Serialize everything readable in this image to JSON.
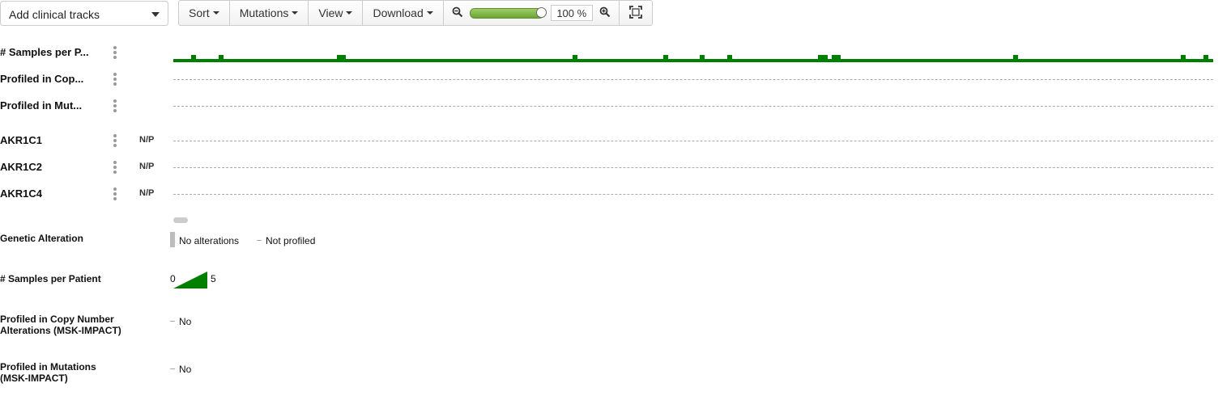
{
  "toolbar": {
    "add_tracks_label": "Add clinical tracks",
    "sort_label": "Sort",
    "mutations_label": "Mutations",
    "view_label": "View",
    "download_label": "Download",
    "zoom_value": "100 %",
    "zoom_level": 1.0,
    "icons": [
      "zoom-out-icon",
      "zoom-in-icon",
      "fit-to-screen-icon"
    ]
  },
  "tracks": [
    {
      "label": "# Samples per P...",
      "np": ""
    },
    {
      "label": "Profiled in Cop...",
      "np": ""
    },
    {
      "label": "Profiled in Mut...",
      "np": ""
    },
    {
      "label": "AKR1C1",
      "np": "N/P"
    },
    {
      "label": "AKR1C2",
      "np": "N/P"
    },
    {
      "label": "AKR1C4",
      "np": "N/P"
    }
  ],
  "samples_per_patient": [
    1,
    1,
    1,
    1,
    2,
    1,
    1,
    1,
    1,
    1,
    2,
    1,
    1,
    1,
    1,
    1,
    1,
    1,
    1,
    1,
    1,
    1,
    1,
    1,
    1,
    1,
    1,
    1,
    1,
    1,
    1,
    1,
    1,
    1,
    1,
    1,
    2,
    2,
    1,
    1,
    1,
    1,
    1,
    1,
    1,
    1,
    1,
    1,
    1,
    1,
    1,
    1,
    1,
    1,
    1,
    1,
    1,
    1,
    1,
    1,
    1,
    1,
    1,
    1,
    1,
    1,
    1,
    1,
    1,
    1,
    1,
    1,
    1,
    1,
    1,
    1,
    1,
    1,
    1,
    1,
    1,
    1,
    1,
    1,
    1,
    1,
    1,
    1,
    2,
    1,
    1,
    1,
    1,
    1,
    1,
    1,
    1,
    1,
    1,
    1,
    1,
    1,
    1,
    1,
    1,
    1,
    1,
    1,
    2,
    1,
    1,
    1,
    1,
    1,
    1,
    1,
    2,
    1,
    1,
    1,
    1,
    1,
    2,
    1,
    1,
    1,
    1,
    1,
    1,
    1,
    1,
    1,
    1,
    1,
    1,
    1,
    1,
    1,
    1,
    1,
    1,
    1,
    2,
    2,
    1,
    2,
    2,
    1,
    1,
    1,
    1,
    1,
    1,
    1,
    1,
    1,
    1,
    1,
    1,
    1,
    1,
    1,
    1,
    1,
    1,
    1,
    1,
    1,
    1,
    1,
    1,
    1,
    1,
    1,
    1,
    1,
    1,
    1,
    1,
    1,
    1,
    1,
    1,
    1,
    1,
    2,
    1,
    1,
    1,
    1,
    1,
    1,
    1,
    1,
    1,
    1,
    1,
    1,
    1,
    1,
    1,
    1,
    1,
    1,
    1,
    1,
    1,
    1,
    1,
    1,
    1,
    1,
    1,
    1,
    1,
    1,
    1,
    1,
    1,
    1,
    1,
    1,
    2,
    1,
    1,
    1,
    1,
    2,
    1
  ],
  "legend": {
    "genetic_alteration": {
      "title": "Genetic Alteration",
      "no_alterations": "No alterations",
      "not_profiled": "Not profiled"
    },
    "samples_per_patient": {
      "title": "# Samples per Patient",
      "min": "0",
      "max": "5",
      "color": "#008000"
    },
    "profiled_cna": {
      "title_line1": "Profiled in Copy Number",
      "title_line2": "Alterations (MSK-IMPACT)",
      "value": "No"
    },
    "profiled_mut": {
      "title_line1": "Profiled in Mutations",
      "title_line2": "(MSK-IMPACT)",
      "value": "No"
    }
  }
}
